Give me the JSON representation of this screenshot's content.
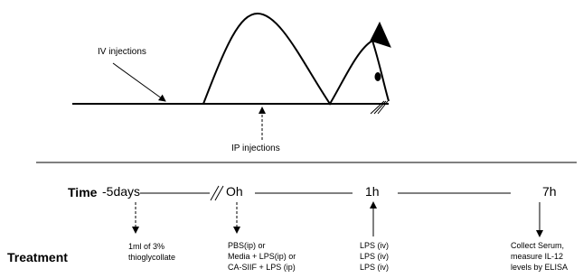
{
  "top": {
    "iv_label": "IV injections",
    "ip_label": "IP injections"
  },
  "timeline": {
    "row_labels": {
      "time": "Time",
      "treatment": "Treatment"
    },
    "points": [
      {
        "time": "-5days",
        "treatment": [
          "1ml of 3%",
          "thioglycollate"
        ]
      },
      {
        "time": "Oh",
        "treatment": [
          "PBS(ip) or",
          "Media + LPS(ip) or",
          "CA-SIIF + LPS (ip)"
        ]
      },
      {
        "time": "1h",
        "treatment": [
          "LPS (iv)",
          "LPS (iv)",
          "LPS (iv)"
        ]
      },
      {
        "time": "7h",
        "treatment": [
          "Collect Serum,",
          "measure IL-12",
          "levels by ELISA"
        ]
      }
    ]
  }
}
